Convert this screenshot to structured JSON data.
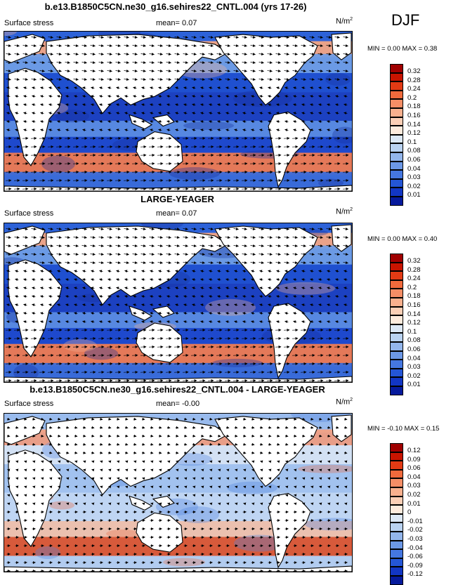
{
  "season": "DJF",
  "field_label": "Surface stress",
  "units_label": "N/m",
  "units_exp": "2",
  "panels": [
    {
      "title": "b.e13.B1850C5CN.ne30_g16.sehires22_CNTL.004 (yrs 17-26)",
      "mean_text": "mean=  0.07",
      "minmax_text": "MIN =  0.00 MAX =  0.38",
      "colorbar_ticks": [
        "0.32",
        "0.28",
        "0.24",
        "0.2",
        "0.18",
        "0.16",
        "0.14",
        "0.12",
        "0.1",
        "0.08",
        "0.06",
        "0.04",
        "0.03",
        "0.02",
        "0.01"
      ],
      "colorbar_colors": [
        "#a00000",
        "#c81400",
        "#e23a14",
        "#f06a3c",
        "#f58e66",
        "#f8b08e",
        "#fbcfb6",
        "#fdebdd",
        "#dce8f6",
        "#b9d2f1",
        "#93b6ec",
        "#6c98e6",
        "#4577e0",
        "#2456d6",
        "#1236c4",
        "#061a9c"
      ]
    },
    {
      "title": "LARGE-YEAGER",
      "mean_text": "mean=  0.07",
      "minmax_text": "MIN =  0.00 MAX =  0.40",
      "colorbar_ticks": [
        "0.32",
        "0.28",
        "0.24",
        "0.2",
        "0.18",
        "0.16",
        "0.14",
        "0.12",
        "0.1",
        "0.08",
        "0.06",
        "0.04",
        "0.03",
        "0.02",
        "0.01"
      ],
      "colorbar_colors": [
        "#a00000",
        "#c81400",
        "#e23a14",
        "#f06a3c",
        "#f58e66",
        "#f8b08e",
        "#fbcfb6",
        "#fdebdd",
        "#dce8f6",
        "#b9d2f1",
        "#93b6ec",
        "#6c98e6",
        "#4577e0",
        "#2456d6",
        "#1236c4",
        "#061a9c"
      ]
    },
    {
      "title": "b.e13.B1850C5CN.ne30_g16.sehires22_CNTL.004 - LARGE-YEAGER",
      "mean_text": "mean=  -0.00",
      "minmax_text": "MIN = -0.10 MAX =  0.15",
      "colorbar_ticks": [
        "0.12",
        "0.09",
        "0.06",
        "0.04",
        "0.03",
        "0.02",
        "0.01",
        "0",
        "-0.01",
        "-0.02",
        "-0.03",
        "-0.04",
        "-0.06",
        "-0.09",
        "-0.12"
      ],
      "colorbar_colors": [
        "#a00000",
        "#c81400",
        "#e23a14",
        "#f06a3c",
        "#f58e66",
        "#f8b08e",
        "#fbcfb6",
        "#fdebdd",
        "#dce8f6",
        "#b9d2f1",
        "#93b6ec",
        "#6c98e6",
        "#4577e0",
        "#2456d6",
        "#1236c4",
        "#061a9c"
      ]
    }
  ]
}
